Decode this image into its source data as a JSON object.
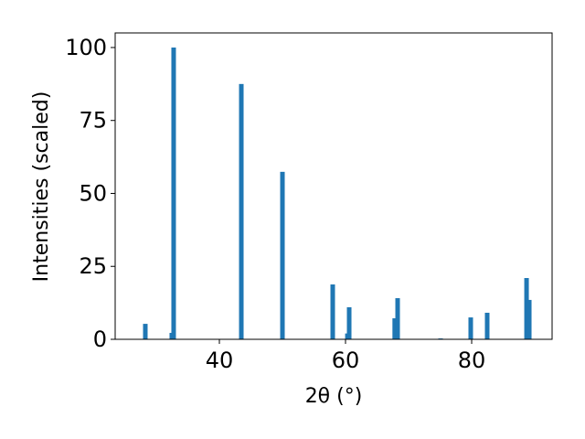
{
  "chart_data": {
    "type": "bar",
    "x_label": "2θ (°)",
    "y_label": "Intensities (scaled)",
    "x": [
      28.26,
      32.46,
      32.75,
      43.48,
      50.0,
      57.97,
      60.3,
      60.58,
      67.8,
      68.26,
      75.07,
      79.85,
      82.46,
      88.7,
      89.13
    ],
    "values": [
      5.3,
      2.2,
      100,
      87.5,
      57.4,
      18.8,
      2.0,
      11.0,
      7.2,
      14.1,
      0.3,
      7.5,
      9.1,
      21.0,
      13.5
    ],
    "color": "#1f77b4",
    "xlim": [
      23.48,
      92.75
    ],
    "xticks": [
      40,
      60,
      80
    ],
    "ylim": [
      0,
      105
    ],
    "yticks": [
      0,
      25,
      50,
      75,
      100
    ],
    "grid": false
  }
}
